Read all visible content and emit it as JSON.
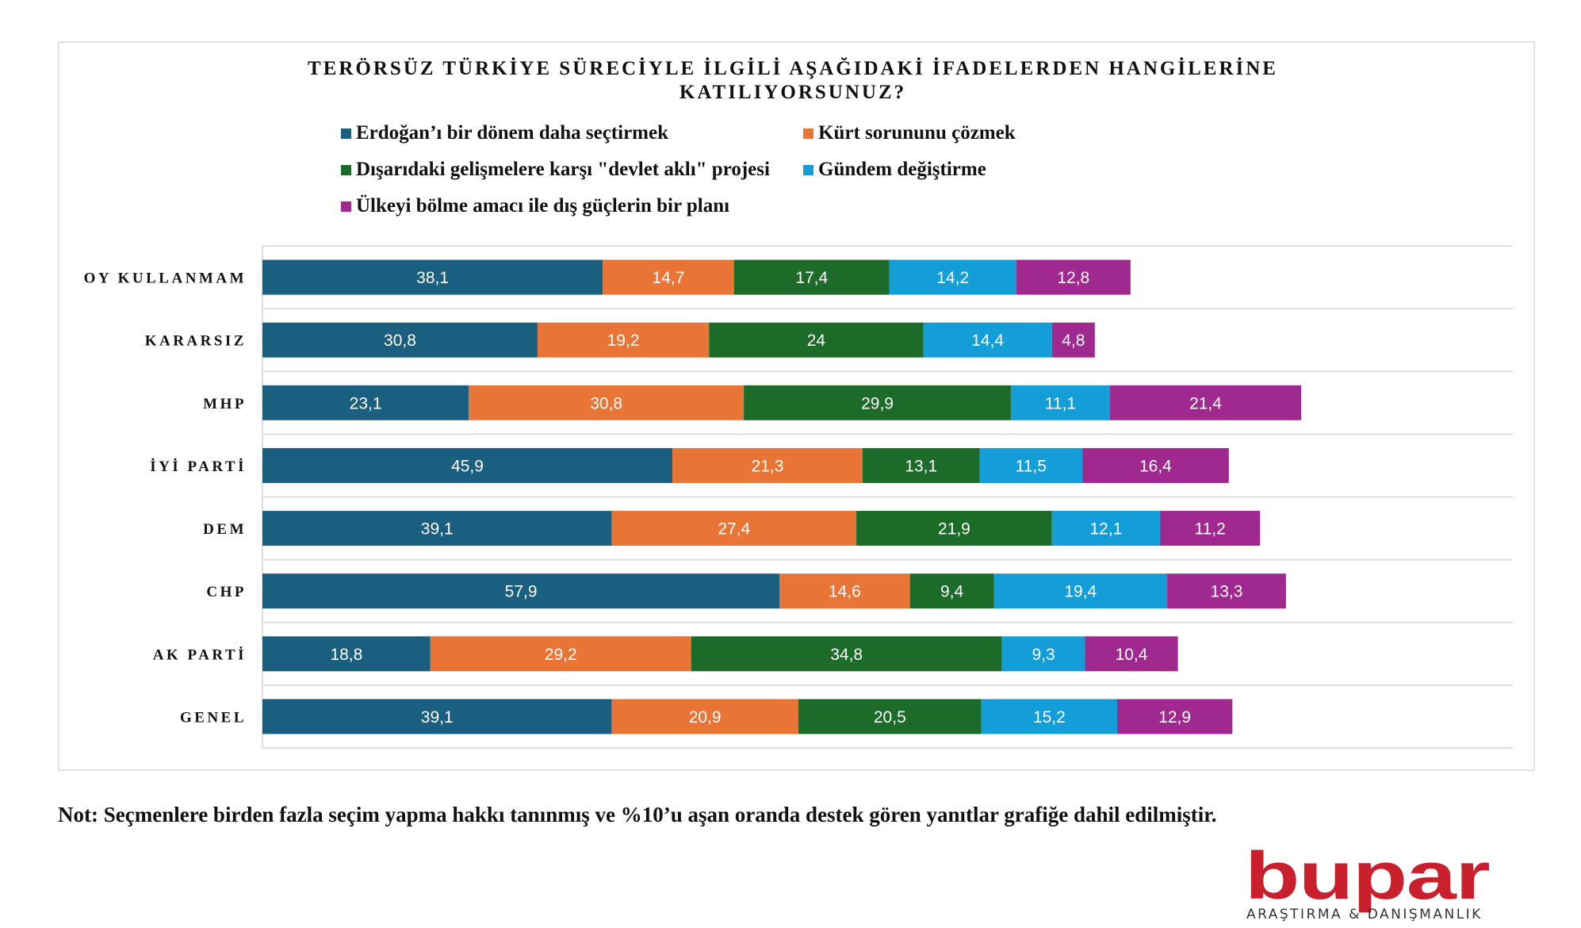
{
  "chart_data": {
    "type": "bar",
    "orientation": "horizontal",
    "stacked": true,
    "title": "TERÖRSÜZ TÜRKİYE SÜRECİYLE İLGİLİ AŞAĞIDAKİ İFADELERDEN HANGİLERİNE KATILIYORSUNUZ?",
    "title_lines": [
      "TERÖRSÜZ TÜRKİYE SÜRECİYLE İLGİLİ AŞAĞIDAKİ İFADELERDEN HANGİLERİNE",
      "KATILIYORSUNUZ?"
    ],
    "xlabel": "",
    "ylabel": "",
    "xlim": [
      0,
      140
    ],
    "grid": true,
    "legend_position": "top",
    "categories": [
      "OY KULLANMAM",
      "KARARSIZ",
      "MHP",
      "İYİ PARTİ",
      "DEM",
      "CHP",
      "AK PARTİ",
      "GENEL"
    ],
    "series": [
      {
        "name": "Erdoğan’ı bir dönem daha seçtirmek",
        "color": "#1a5e80",
        "values": [
          38.1,
          30.8,
          23.1,
          45.9,
          39.1,
          57.9,
          18.8,
          39.1
        ],
        "labels": [
          "38,1",
          "30,8",
          "23,1",
          "45,9",
          "39,1",
          "57,9",
          "18,8",
          "39,1"
        ]
      },
      {
        "name": "Kürt sorununu çözmek",
        "color": "#e87435",
        "values": [
          14.7,
          19.2,
          30.8,
          21.3,
          27.4,
          14.6,
          29.2,
          20.9
        ],
        "labels": [
          "14,7",
          "19,2",
          "30,8",
          "21,3",
          "27,4",
          "14,6",
          "29,2",
          "20,9"
        ]
      },
      {
        "name": "Dışarıdaki gelişmelere karşı \"devlet aklı\" projesi",
        "color": "#1c6b28",
        "values": [
          17.4,
          24,
          29.9,
          13.1,
          21.9,
          9.4,
          34.8,
          20.5
        ],
        "labels": [
          "17,4",
          "24",
          "29,9",
          "13,1",
          "21,9",
          "9,4",
          "34,8",
          "20,5"
        ]
      },
      {
        "name": "Gündem değiştirme",
        "color": "#139ed8",
        "values": [
          14.2,
          14.4,
          11.1,
          11.5,
          12.1,
          19.4,
          9.3,
          15.2
        ],
        "labels": [
          "14,2",
          "14,4",
          "11,1",
          "11,5",
          "12,1",
          "19,4",
          "9,3",
          "15,2"
        ]
      },
      {
        "name": "Ülkeyi bölme amacı ile dış güçlerin bir planı",
        "color": "#a0298f",
        "values": [
          12.8,
          4.8,
          21.4,
          16.4,
          11.2,
          13.3,
          10.4,
          12.9
        ],
        "labels": [
          "12,8",
          "4,8",
          "21,4",
          "16,4",
          "11,2",
          "13,3",
          "10,4",
          "12,9"
        ]
      }
    ]
  },
  "note": "Not: Seçmenlere birden fazla seçim yapma hakkı tanınmış ve %10’u aşan oranda destek gören yanıtlar grafiğe dahil edilmiştir.",
  "logo": {
    "wordmark": "bupar",
    "tagline": "ARAŞTIRMA & DANIŞMANLIK",
    "color": "#c8202c"
  }
}
